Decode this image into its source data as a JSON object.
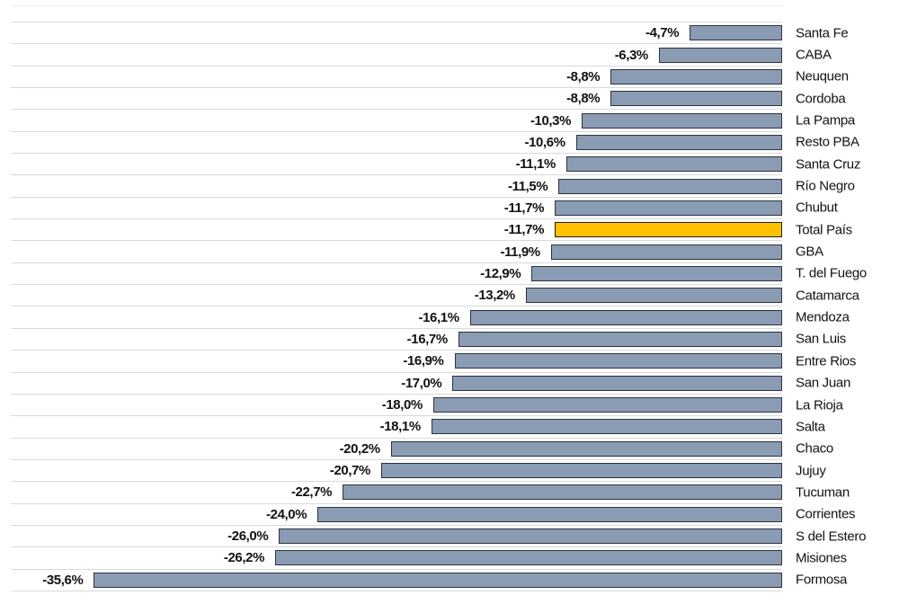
{
  "chart_data": {
    "type": "bar",
    "orientation": "horizontal",
    "title": "",
    "xlabel": "",
    "ylabel": "",
    "xlim": [
      -40,
      0
    ],
    "grid": "horizontal category separator lines, bars anchored to right baseline",
    "legend_position": "none",
    "value_label_format": "negative percent, comma decimal separator",
    "colors": {
      "bar_fill": "#8A9BB3",
      "bar_border": "#2B3440",
      "highlight_fill": "#FFC000",
      "highlight_border": "#1F1F1F",
      "gridline": "#D9D9D9",
      "text": "#121212",
      "background": "#FFFFFF"
    },
    "rows": [
      {
        "category": "Santa Fe",
        "value": -4.7,
        "value_label": "-4,7%",
        "highlight": false
      },
      {
        "category": "CABA",
        "value": -6.3,
        "value_label": "-6,3%",
        "highlight": false
      },
      {
        "category": "Neuquen",
        "value": -8.8,
        "value_label": "-8,8%",
        "highlight": false
      },
      {
        "category": "Cordoba",
        "value": -8.8,
        "value_label": "-8,8%",
        "highlight": false
      },
      {
        "category": "La Pampa",
        "value": -10.3,
        "value_label": "-10,3%",
        "highlight": false
      },
      {
        "category": "Resto PBA",
        "value": -10.6,
        "value_label": "-10,6%",
        "highlight": false
      },
      {
        "category": "Santa Cruz",
        "value": -11.1,
        "value_label": "-11,1%",
        "highlight": false
      },
      {
        "category": "Río Negro",
        "value": -11.5,
        "value_label": "-11,5%",
        "highlight": false
      },
      {
        "category": "Chubut",
        "value": -11.7,
        "value_label": "-11,7%",
        "highlight": false
      },
      {
        "category": "Total País",
        "value": -11.7,
        "value_label": "-11,7%",
        "highlight": true
      },
      {
        "category": "GBA",
        "value": -11.9,
        "value_label": "-11,9%",
        "highlight": false
      },
      {
        "category": "T. del Fuego",
        "value": -12.9,
        "value_label": "-12,9%",
        "highlight": false
      },
      {
        "category": "Catamarca",
        "value": -13.2,
        "value_label": "-13,2%",
        "highlight": false
      },
      {
        "category": "Mendoza",
        "value": -16.1,
        "value_label": "-16,1%",
        "highlight": false
      },
      {
        "category": "San Luis",
        "value": -16.7,
        "value_label": "-16,7%",
        "highlight": false
      },
      {
        "category": "Entre Rios",
        "value": -16.9,
        "value_label": "-16,9%",
        "highlight": false
      },
      {
        "category": "San Juan",
        "value": -17.0,
        "value_label": "-17,0%",
        "highlight": false
      },
      {
        "category": "La Rioja",
        "value": -18.0,
        "value_label": "-18,0%",
        "highlight": false
      },
      {
        "category": "Salta",
        "value": -18.1,
        "value_label": "-18,1%",
        "highlight": false
      },
      {
        "category": "Chaco",
        "value": -20.2,
        "value_label": "-20,2%",
        "highlight": false
      },
      {
        "category": "Jujuy",
        "value": -20.7,
        "value_label": "-20,7%",
        "highlight": false
      },
      {
        "category": "Tucuman",
        "value": -22.7,
        "value_label": "-22,7%",
        "highlight": false
      },
      {
        "category": "Corrientes",
        "value": -24.0,
        "value_label": "-24,0%",
        "highlight": false
      },
      {
        "category": "S del Estero",
        "value": -26.0,
        "value_label": "-26,0%",
        "highlight": false
      },
      {
        "category": "Misiones",
        "value": -26.2,
        "value_label": "-26,2%",
        "highlight": false
      },
      {
        "category": "Formosa",
        "value": -35.6,
        "value_label": "-35,6%",
        "highlight": false
      }
    ]
  }
}
